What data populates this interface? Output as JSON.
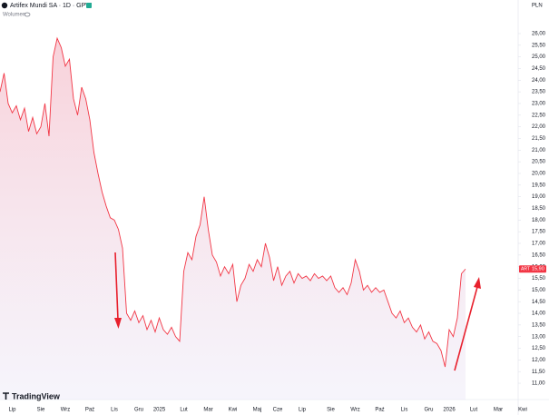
{
  "chart_data": {
    "type": "area",
    "title": "Artifex Mundi SA · 1D · GPW",
    "subtitle": "Wolumen",
    "currency": "PLN",
    "brand": "TradingView",
    "price_tag": {
      "symbol": "ART",
      "label": "15,90"
    },
    "color": "#f23645",
    "grid": false,
    "categories": [
      null,
      null,
      null,
      "Lip",
      null,
      null,
      null,
      null,
      null,
      null,
      "Sie",
      null,
      null,
      null,
      null,
      null,
      "Wrz",
      null,
      null,
      null,
      null,
      null,
      "Paź",
      null,
      null,
      null,
      null,
      null,
      "Lis",
      null,
      null,
      null,
      null,
      null,
      "Gru",
      null,
      null,
      null,
      null,
      "2025",
      null,
      null,
      null,
      null,
      null,
      "Lut",
      null,
      null,
      null,
      null,
      null,
      "Mar",
      null,
      null,
      null,
      null,
      null,
      "Kwi",
      null,
      null,
      null,
      null,
      null,
      "Maj",
      null,
      null,
      null,
      null,
      "Cze",
      null,
      null,
      null,
      null,
      null,
      "Lip",
      null,
      null,
      null,
      null,
      null,
      null,
      "Sie",
      null,
      null,
      null,
      null,
      null,
      "Wrz",
      null,
      null,
      null,
      null,
      null,
      "Paź",
      null,
      null,
      null,
      null,
      null,
      "Lis",
      null,
      null,
      null,
      null,
      null,
      "Gru",
      null,
      null,
      null,
      null,
      "2026",
      null,
      null,
      null,
      null,
      null,
      "Lut",
      null,
      null,
      null,
      null,
      null,
      "Mar",
      null,
      null,
      null,
      null,
      null,
      "Kwi"
    ],
    "values": [
      23.5,
      24.3,
      23,
      22.6,
      22.9,
      22.3,
      22.8,
      21.8,
      22.4,
      21.7,
      22.0,
      23.0,
      21.6,
      25.0,
      25.8,
      25.4,
      24.6,
      24.9,
      23.2,
      22.5,
      23.7,
      23.2,
      22.3,
      20.9,
      20.0,
      19.2,
      18.6,
      18.1,
      18.0,
      17.6,
      16.8,
      14.0,
      13.7,
      14.1,
      13.6,
      13.9,
      13.3,
      13.7,
      13.2,
      13.8,
      13.3,
      13.1,
      13.4,
      13.0,
      12.8,
      15.8,
      16.6,
      16.3,
      17.3,
      17.8,
      19.0,
      17.6,
      16.5,
      16.2,
      15.6,
      16.0,
      15.7,
      16.1,
      14.5,
      15.2,
      15.5,
      16.1,
      15.8,
      16.3,
      16.0,
      17.0,
      16.4,
      15.4,
      16.0,
      15.2,
      15.6,
      15.8,
      15.3,
      15.7,
      15.5,
      15.6,
      15.4,
      15.7,
      15.5,
      15.6,
      15.4,
      15.6,
      15.1,
      14.9,
      15.1,
      14.8,
      15.3,
      16.3,
      15.8,
      15.0,
      15.2,
      14.9,
      15.1,
      14.9,
      15.0,
      14.5,
      14.0,
      13.8,
      14.1,
      13.6,
      13.8,
      13.4,
      13.2,
      13.5,
      12.9,
      13.2,
      12.8,
      12.7,
      12.4,
      11.7,
      13.3,
      13.0,
      13.8,
      15.7,
      15.9,
      null,
      null,
      null,
      null,
      null,
      null,
      null,
      null,
      null,
      null,
      null,
      null,
      null,
      null
    ],
    "ylim": [
      10.3,
      27.44
    ],
    "yticks": [
      {
        "value": 11,
        "label": "11,00"
      },
      {
        "value": 11.5,
        "label": "11,50"
      },
      {
        "value": 12,
        "label": "12,00"
      },
      {
        "value": 12.5,
        "label": "12,50"
      },
      {
        "value": 13,
        "label": "13,00"
      },
      {
        "value": 13.5,
        "label": "13,50"
      },
      {
        "value": 14,
        "label": "14,00"
      },
      {
        "value": 14.5,
        "label": "14,50"
      },
      {
        "value": 15,
        "label": "15,00"
      },
      {
        "value": 15.5,
        "label": "15,50"
      },
      {
        "value": 16,
        "label": "16,00"
      },
      {
        "value": 16.5,
        "label": "16,50"
      },
      {
        "value": 17,
        "label": "17,00"
      },
      {
        "value": 17.5,
        "label": "17,50"
      },
      {
        "value": 18,
        "label": "18,00"
      },
      {
        "value": 18.5,
        "label": "18,50"
      },
      {
        "value": 19,
        "label": "19,00"
      },
      {
        "value": 19.5,
        "label": "19,50"
      },
      {
        "value": 20,
        "label": "20,00"
      },
      {
        "value": 20.5,
        "label": "20,50"
      },
      {
        "value": 21,
        "label": "21,00"
      },
      {
        "value": 21.5,
        "label": "21,50"
      },
      {
        "value": 22,
        "label": "22,00"
      },
      {
        "value": 22.5,
        "label": "22,50"
      },
      {
        "value": 23,
        "label": "23,00"
      },
      {
        "value": 23.5,
        "label": "23,50"
      },
      {
        "value": 24,
        "label": "24,00"
      },
      {
        "value": 24.5,
        "label": "24,50"
      },
      {
        "value": 25,
        "label": "25,00"
      },
      {
        "value": 25.5,
        "label": "25,50"
      },
      {
        "value": 26,
        "label": "26,00"
      }
    ]
  }
}
